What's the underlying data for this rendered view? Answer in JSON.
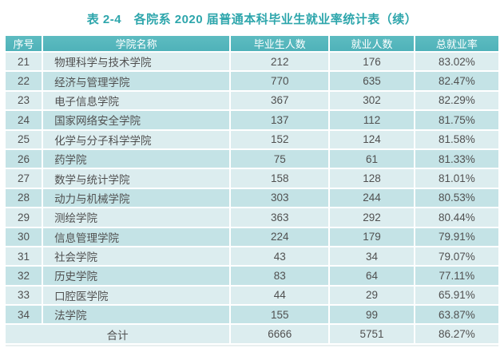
{
  "page": {
    "title": "表 2-4　各院系 2020 届普通本科毕业生就业率统计表（续）"
  },
  "colors": {
    "page_bg": "#ffffff",
    "title_text": "#2ea6ac",
    "header_bg": "#4fb2b9",
    "header_bg_light": "#5dbcc1",
    "header_text": "#ffffff",
    "row_light": "#dcedef",
    "row_dark": "#c4e3e6",
    "cell_text": "#505050",
    "grid_line": "#ffffff"
  },
  "table": {
    "columns": [
      "序号",
      "学院名称",
      "毕业生人数",
      "就业人数",
      "总就业率"
    ],
    "rows": [
      {
        "no": "21",
        "college": "物理科学与技术学院",
        "graduates": "212",
        "employed": "176",
        "rate": "83.02%"
      },
      {
        "no": "22",
        "college": "经济与管理学院",
        "graduates": "770",
        "employed": "635",
        "rate": "82.47%"
      },
      {
        "no": "23",
        "college": "电子信息学院",
        "graduates": "367",
        "employed": "302",
        "rate": "82.29%"
      },
      {
        "no": "24",
        "college": "国家网络安全学院",
        "graduates": "137",
        "employed": "112",
        "rate": "81.75%"
      },
      {
        "no": "25",
        "college": "化学与分子科学学院",
        "graduates": "152",
        "employed": "124",
        "rate": "81.58%"
      },
      {
        "no": "26",
        "college": "药学院",
        "graduates": "75",
        "employed": "61",
        "rate": "81.33%"
      },
      {
        "no": "27",
        "college": "数学与统计学院",
        "graduates": "158",
        "employed": "128",
        "rate": "81.01%"
      },
      {
        "no": "28",
        "college": "动力与机械学院",
        "graduates": "303",
        "employed": "244",
        "rate": "80.53%"
      },
      {
        "no": "29",
        "college": "测绘学院",
        "graduates": "363",
        "employed": "292",
        "rate": "80.44%"
      },
      {
        "no": "30",
        "college": "信息管理学院",
        "graduates": "224",
        "employed": "179",
        "rate": "79.91%"
      },
      {
        "no": "31",
        "college": "社会学院",
        "graduates": "43",
        "employed": "34",
        "rate": "79.07%"
      },
      {
        "no": "32",
        "college": "历史学院",
        "graduates": "83",
        "employed": "64",
        "rate": "77.11%"
      },
      {
        "no": "33",
        "college": "口腔医学院",
        "graduates": "44",
        "employed": "29",
        "rate": "65.91%"
      },
      {
        "no": "34",
        "college": "法学院",
        "graduates": "155",
        "employed": "99",
        "rate": "63.87%"
      }
    ],
    "total_row": {
      "label": "合计",
      "graduates": "6666",
      "employed": "5751",
      "rate": "86.27%"
    }
  }
}
